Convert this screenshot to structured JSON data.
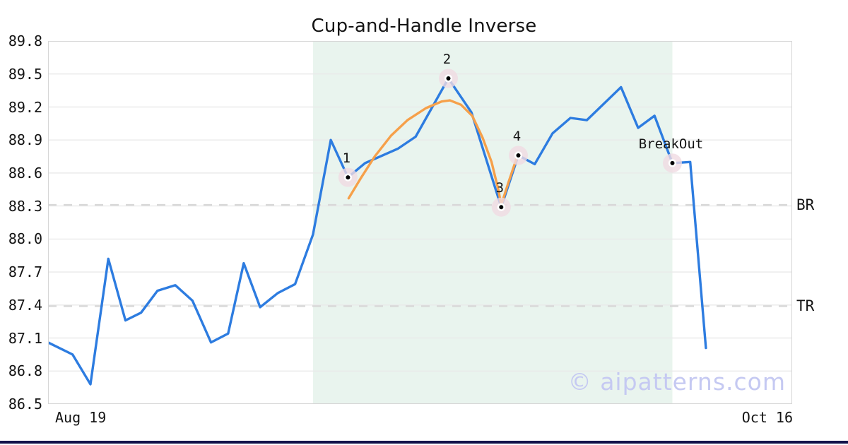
{
  "title": "Cup-and-Handle Inverse",
  "watermark": "© aipatterns.com",
  "chart_data": {
    "type": "line",
    "title": "Cup-and-Handle Inverse",
    "xlabel": "",
    "ylabel": "",
    "ylim": [
      86.5,
      89.8
    ],
    "y_ticks": [
      89.8,
      89.5,
      89.2,
      88.9,
      88.6,
      88.3,
      88.0,
      87.7,
      87.4,
      87.1,
      86.8,
      86.5
    ],
    "x_ticklabels": {
      "start": "Aug 19",
      "end": "Oct 16"
    },
    "grid": "horizontal",
    "legend": "none",
    "hlines": [
      {
        "label": "BR",
        "value": 88.31,
        "style": "dashed",
        "color": "#d8d8d8"
      },
      {
        "label": "TR",
        "value": 87.39,
        "style": "dashed",
        "color": "#d8d8d8"
      }
    ],
    "shaded_region": {
      "x_start_frac": 0.356,
      "x_end_frac": 0.839,
      "color": "#e9f4ee"
    },
    "series": [
      {
        "name": "price",
        "color": "#2d7ce0",
        "points": [
          [
            0.0,
            87.06
          ],
          [
            0.033,
            86.95
          ],
          [
            0.057,
            86.68
          ],
          [
            0.081,
            87.82
          ],
          [
            0.104,
            87.26
          ],
          [
            0.125,
            87.33
          ],
          [
            0.147,
            87.53
          ],
          [
            0.171,
            87.58
          ],
          [
            0.194,
            87.44
          ],
          [
            0.219,
            87.06
          ],
          [
            0.242,
            87.14
          ],
          [
            0.263,
            87.78
          ],
          [
            0.285,
            87.38
          ],
          [
            0.309,
            87.51
          ],
          [
            0.332,
            87.59
          ],
          [
            0.356,
            88.04
          ],
          [
            0.38,
            88.9
          ],
          [
            0.403,
            88.56
          ],
          [
            0.426,
            88.69
          ],
          [
            0.47,
            88.82
          ],
          [
            0.494,
            88.93
          ],
          [
            0.538,
            89.46
          ],
          [
            0.569,
            89.15
          ],
          [
            0.609,
            88.29
          ],
          [
            0.632,
            88.76
          ],
          [
            0.654,
            88.68
          ],
          [
            0.678,
            88.96
          ],
          [
            0.702,
            89.1
          ],
          [
            0.724,
            89.08
          ],
          [
            0.77,
            89.38
          ],
          [
            0.793,
            89.01
          ],
          [
            0.815,
            89.12
          ],
          [
            0.839,
            88.69
          ],
          [
            0.863,
            88.7
          ],
          [
            0.884,
            87.01
          ]
        ]
      },
      {
        "name": "cup-handle-arc",
        "color": "#f6a04a",
        "points": [
          [
            0.404,
            88.37
          ],
          [
            0.42,
            88.55
          ],
          [
            0.439,
            88.75
          ],
          [
            0.461,
            88.94
          ],
          [
            0.483,
            89.08
          ],
          [
            0.508,
            89.19
          ],
          [
            0.529,
            89.25
          ],
          [
            0.54,
            89.26
          ],
          [
            0.555,
            89.22
          ],
          [
            0.57,
            89.12
          ],
          [
            0.584,
            88.92
          ],
          [
            0.596,
            88.7
          ],
          [
            0.605,
            88.45
          ],
          [
            0.609,
            88.31
          ],
          [
            0.619,
            88.52
          ],
          [
            0.63,
            88.74
          ]
        ]
      }
    ],
    "markers": [
      {
        "label": "1",
        "x": 0.403,
        "y": 88.56
      },
      {
        "label": "2",
        "x": 0.538,
        "y": 89.46
      },
      {
        "label": "3",
        "x": 0.609,
        "y": 88.29
      },
      {
        "label": "4",
        "x": 0.632,
        "y": 88.76
      },
      {
        "label": "BreakOut",
        "x": 0.839,
        "y": 88.69
      }
    ],
    "marker_style": {
      "halo_color": "#f0dbe2",
      "dot_color": "#000000",
      "ring_color": "#ffffff"
    }
  }
}
